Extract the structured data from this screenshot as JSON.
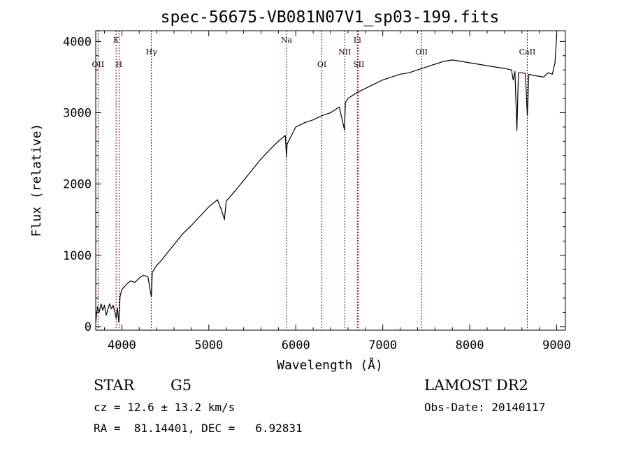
{
  "chart_data": {
    "type": "line",
    "title": "spec-56675-VB081N07V1_sp03-199.fits",
    "xlabel": "Wavelength (Å)",
    "ylabel": "Flux (relative)",
    "xlim": [
      3700,
      9100
    ],
    "ylim": [
      -50,
      4150
    ],
    "x_ticks": [
      4000,
      5000,
      6000,
      7000,
      8000,
      9000
    ],
    "y_ticks": [
      0,
      1000,
      2000,
      3000,
      4000
    ],
    "grid": false,
    "series": [
      {
        "color": "#000000",
        "points": [
          [
            3700,
            60
          ],
          [
            3720,
            280
          ],
          [
            3740,
            200
          ],
          [
            3760,
            320
          ],
          [
            3780,
            230
          ],
          [
            3800,
            300
          ],
          [
            3820,
            160
          ],
          [
            3840,
            240
          ],
          [
            3860,
            320
          ],
          [
            3880,
            250
          ],
          [
            3900,
            300
          ],
          [
            3920,
            200
          ],
          [
            3935,
            120
          ],
          [
            3950,
            260
          ],
          [
            3965,
            60
          ],
          [
            3980,
            420
          ],
          [
            4000,
            520
          ],
          [
            4030,
            560
          ],
          [
            4060,
            600
          ],
          [
            4100,
            640
          ],
          [
            4150,
            620
          ],
          [
            4200,
            680
          ],
          [
            4250,
            720
          ],
          [
            4300,
            700
          ],
          [
            4330,
            480
          ],
          [
            4340,
            420
          ],
          [
            4350,
            760
          ],
          [
            4400,
            860
          ],
          [
            4450,
            920
          ],
          [
            4500,
            1000
          ],
          [
            4600,
            1150
          ],
          [
            4700,
            1300
          ],
          [
            4800,
            1420
          ],
          [
            4900,
            1550
          ],
          [
            5000,
            1680
          ],
          [
            5100,
            1780
          ],
          [
            5150,
            1620
          ],
          [
            5180,
            1500
          ],
          [
            5200,
            1760
          ],
          [
            5300,
            1900
          ],
          [
            5400,
            2050
          ],
          [
            5500,
            2200
          ],
          [
            5600,
            2350
          ],
          [
            5700,
            2480
          ],
          [
            5800,
            2600
          ],
          [
            5880,
            2680
          ],
          [
            5893,
            2380
          ],
          [
            5900,
            2560
          ],
          [
            6000,
            2800
          ],
          [
            6100,
            2860
          ],
          [
            6200,
            2900
          ],
          [
            6300,
            2960
          ],
          [
            6400,
            3000
          ],
          [
            6500,
            3080
          ],
          [
            6560,
            2760
          ],
          [
            6570,
            3140
          ],
          [
            6600,
            3200
          ],
          [
            6700,
            3280
          ],
          [
            6800,
            3340
          ],
          [
            6900,
            3400
          ],
          [
            7000,
            3460
          ],
          [
            7100,
            3500
          ],
          [
            7200,
            3540
          ],
          [
            7300,
            3560
          ],
          [
            7400,
            3600
          ],
          [
            7500,
            3640
          ],
          [
            7600,
            3680
          ],
          [
            7700,
            3720
          ],
          [
            7800,
            3740
          ],
          [
            7900,
            3720
          ],
          [
            8000,
            3700
          ],
          [
            8100,
            3680
          ],
          [
            8200,
            3660
          ],
          [
            8300,
            3640
          ],
          [
            8400,
            3620
          ],
          [
            8480,
            3600
          ],
          [
            8500,
            3460
          ],
          [
            8520,
            3580
          ],
          [
            8542,
            2750
          ],
          [
            8560,
            3560
          ],
          [
            8600,
            3560
          ],
          [
            8640,
            3550
          ],
          [
            8662,
            2960
          ],
          [
            8680,
            3540
          ],
          [
            8750,
            3520
          ],
          [
            8850,
            3500
          ],
          [
            8900,
            3560
          ],
          [
            8950,
            3540
          ],
          [
            8980,
            3700
          ],
          [
            9000,
            4100
          ]
        ]
      }
    ],
    "line_markers": [
      {
        "wavelength": 3727,
        "label": "OII",
        "row": 2
      },
      {
        "wavelength": 3934,
        "label": "K",
        "row": 1
      },
      {
        "wavelength": 3968,
        "label": "H",
        "row": 2
      },
      {
        "wavelength": 4340,
        "label": "Hγ",
        "row": 1.5
      },
      {
        "wavelength": 5893,
        "label": "Na",
        "row": 1
      },
      {
        "wavelength": 6300,
        "label": "OI",
        "row": 2
      },
      {
        "wavelength": 6563,
        "label": "NII",
        "row": 1.5
      },
      {
        "wavelength": 6708,
        "label": "Li",
        "row": 1
      },
      {
        "wavelength": 6724,
        "label": "SII",
        "row": 2
      },
      {
        "wavelength": 7446,
        "label": "OII",
        "row": 1.5
      },
      {
        "wavelength": 8662,
        "label": "CaII",
        "row": 1.5
      }
    ],
    "marker_color": "#8b0000"
  },
  "info": {
    "class": "STAR",
    "subclass": "G5",
    "survey": "LAMOST DR2",
    "cz": "cz = 12.6 ± 13.2 km/s",
    "obs_date": "Obs-Date: 20140117",
    "coords": "RA =  81.14401, DEC =   6.92831"
  }
}
